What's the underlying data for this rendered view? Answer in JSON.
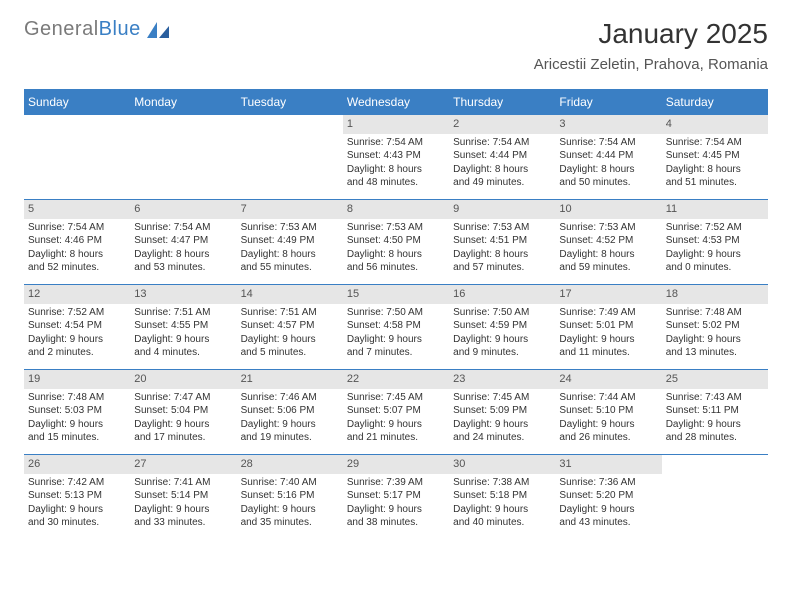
{
  "brand": {
    "general": "General",
    "blue": "Blue"
  },
  "title": "January 2025",
  "location": "Aricestii Zeletin, Prahova, Romania",
  "colors": {
    "header_bg": "#3a7fc4",
    "daynum_bg": "#e6e6e6",
    "border": "#3a7fc4",
    "text": "#333333",
    "logo_gray": "#7a7a7a"
  },
  "typography": {
    "title_fontsize": 28,
    "location_fontsize": 15,
    "dayheader_fontsize": 12,
    "cell_fontsize": 10
  },
  "day_labels": [
    "Sunday",
    "Monday",
    "Tuesday",
    "Wednesday",
    "Thursday",
    "Friday",
    "Saturday"
  ],
  "weeks": [
    [
      {
        "empty": true
      },
      {
        "empty": true
      },
      {
        "empty": true
      },
      {
        "day": "1",
        "sunrise": "7:54 AM",
        "sunset": "4:43 PM",
        "daylight_h": "8",
        "daylight_m": "48"
      },
      {
        "day": "2",
        "sunrise": "7:54 AM",
        "sunset": "4:44 PM",
        "daylight_h": "8",
        "daylight_m": "49"
      },
      {
        "day": "3",
        "sunrise": "7:54 AM",
        "sunset": "4:44 PM",
        "daylight_h": "8",
        "daylight_m": "50"
      },
      {
        "day": "4",
        "sunrise": "7:54 AM",
        "sunset": "4:45 PM",
        "daylight_h": "8",
        "daylight_m": "51"
      }
    ],
    [
      {
        "day": "5",
        "sunrise": "7:54 AM",
        "sunset": "4:46 PM",
        "daylight_h": "8",
        "daylight_m": "52"
      },
      {
        "day": "6",
        "sunrise": "7:54 AM",
        "sunset": "4:47 PM",
        "daylight_h": "8",
        "daylight_m": "53"
      },
      {
        "day": "7",
        "sunrise": "7:53 AM",
        "sunset": "4:49 PM",
        "daylight_h": "8",
        "daylight_m": "55"
      },
      {
        "day": "8",
        "sunrise": "7:53 AM",
        "sunset": "4:50 PM",
        "daylight_h": "8",
        "daylight_m": "56"
      },
      {
        "day": "9",
        "sunrise": "7:53 AM",
        "sunset": "4:51 PM",
        "daylight_h": "8",
        "daylight_m": "57"
      },
      {
        "day": "10",
        "sunrise": "7:53 AM",
        "sunset": "4:52 PM",
        "daylight_h": "8",
        "daylight_m": "59"
      },
      {
        "day": "11",
        "sunrise": "7:52 AM",
        "sunset": "4:53 PM",
        "daylight_h": "9",
        "daylight_m": "0"
      }
    ],
    [
      {
        "day": "12",
        "sunrise": "7:52 AM",
        "sunset": "4:54 PM",
        "daylight_h": "9",
        "daylight_m": "2"
      },
      {
        "day": "13",
        "sunrise": "7:51 AM",
        "sunset": "4:55 PM",
        "daylight_h": "9",
        "daylight_m": "4"
      },
      {
        "day": "14",
        "sunrise": "7:51 AM",
        "sunset": "4:57 PM",
        "daylight_h": "9",
        "daylight_m": "5"
      },
      {
        "day": "15",
        "sunrise": "7:50 AM",
        "sunset": "4:58 PM",
        "daylight_h": "9",
        "daylight_m": "7"
      },
      {
        "day": "16",
        "sunrise": "7:50 AM",
        "sunset": "4:59 PM",
        "daylight_h": "9",
        "daylight_m": "9"
      },
      {
        "day": "17",
        "sunrise": "7:49 AM",
        "sunset": "5:01 PM",
        "daylight_h": "9",
        "daylight_m": "11"
      },
      {
        "day": "18",
        "sunrise": "7:48 AM",
        "sunset": "5:02 PM",
        "daylight_h": "9",
        "daylight_m": "13"
      }
    ],
    [
      {
        "day": "19",
        "sunrise": "7:48 AM",
        "sunset": "5:03 PM",
        "daylight_h": "9",
        "daylight_m": "15"
      },
      {
        "day": "20",
        "sunrise": "7:47 AM",
        "sunset": "5:04 PM",
        "daylight_h": "9",
        "daylight_m": "17"
      },
      {
        "day": "21",
        "sunrise": "7:46 AM",
        "sunset": "5:06 PM",
        "daylight_h": "9",
        "daylight_m": "19"
      },
      {
        "day": "22",
        "sunrise": "7:45 AM",
        "sunset": "5:07 PM",
        "daylight_h": "9",
        "daylight_m": "21"
      },
      {
        "day": "23",
        "sunrise": "7:45 AM",
        "sunset": "5:09 PM",
        "daylight_h": "9",
        "daylight_m": "24"
      },
      {
        "day": "24",
        "sunrise": "7:44 AM",
        "sunset": "5:10 PM",
        "daylight_h": "9",
        "daylight_m": "26"
      },
      {
        "day": "25",
        "sunrise": "7:43 AM",
        "sunset": "5:11 PM",
        "daylight_h": "9",
        "daylight_m": "28"
      }
    ],
    [
      {
        "day": "26",
        "sunrise": "7:42 AM",
        "sunset": "5:13 PM",
        "daylight_h": "9",
        "daylight_m": "30"
      },
      {
        "day": "27",
        "sunrise": "7:41 AM",
        "sunset": "5:14 PM",
        "daylight_h": "9",
        "daylight_m": "33"
      },
      {
        "day": "28",
        "sunrise": "7:40 AM",
        "sunset": "5:16 PM",
        "daylight_h": "9",
        "daylight_m": "35"
      },
      {
        "day": "29",
        "sunrise": "7:39 AM",
        "sunset": "5:17 PM",
        "daylight_h": "9",
        "daylight_m": "38"
      },
      {
        "day": "30",
        "sunrise": "7:38 AM",
        "sunset": "5:18 PM",
        "daylight_h": "9",
        "daylight_m": "40"
      },
      {
        "day": "31",
        "sunrise": "7:36 AM",
        "sunset": "5:20 PM",
        "daylight_h": "9",
        "daylight_m": "43"
      },
      {
        "empty": true
      }
    ]
  ]
}
